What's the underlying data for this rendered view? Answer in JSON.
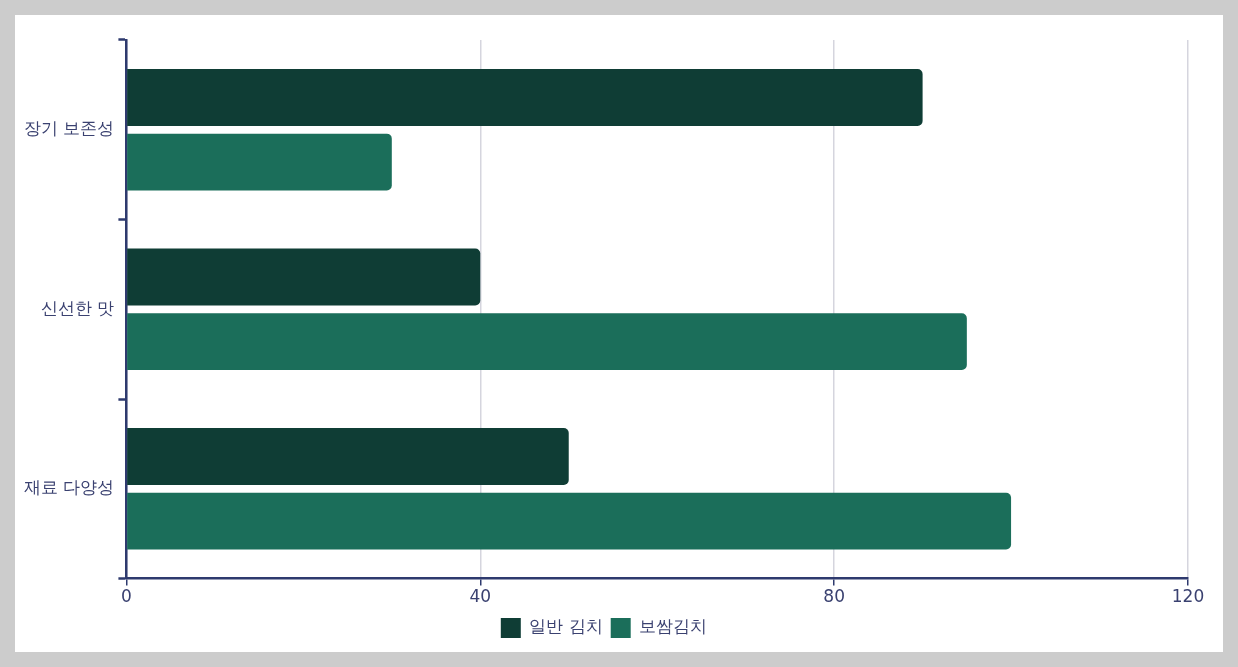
{
  "chart_data": {
    "type": "bar",
    "orientation": "horizontal",
    "categories": [
      "장기 보존성",
      "신선한 맛",
      "재료 다양성"
    ],
    "series": [
      {
        "name": "일반 김치",
        "color": "#0f3d35",
        "values": [
          90,
          40,
          50
        ]
      },
      {
        "name": "보쌈김치",
        "color": "#1b6e5a",
        "values": [
          30,
          95,
          100
        ]
      }
    ],
    "xlim": [
      0,
      120
    ],
    "xticks": [
      0,
      40,
      80,
      120
    ],
    "grid": "x",
    "legend": "bottom"
  }
}
